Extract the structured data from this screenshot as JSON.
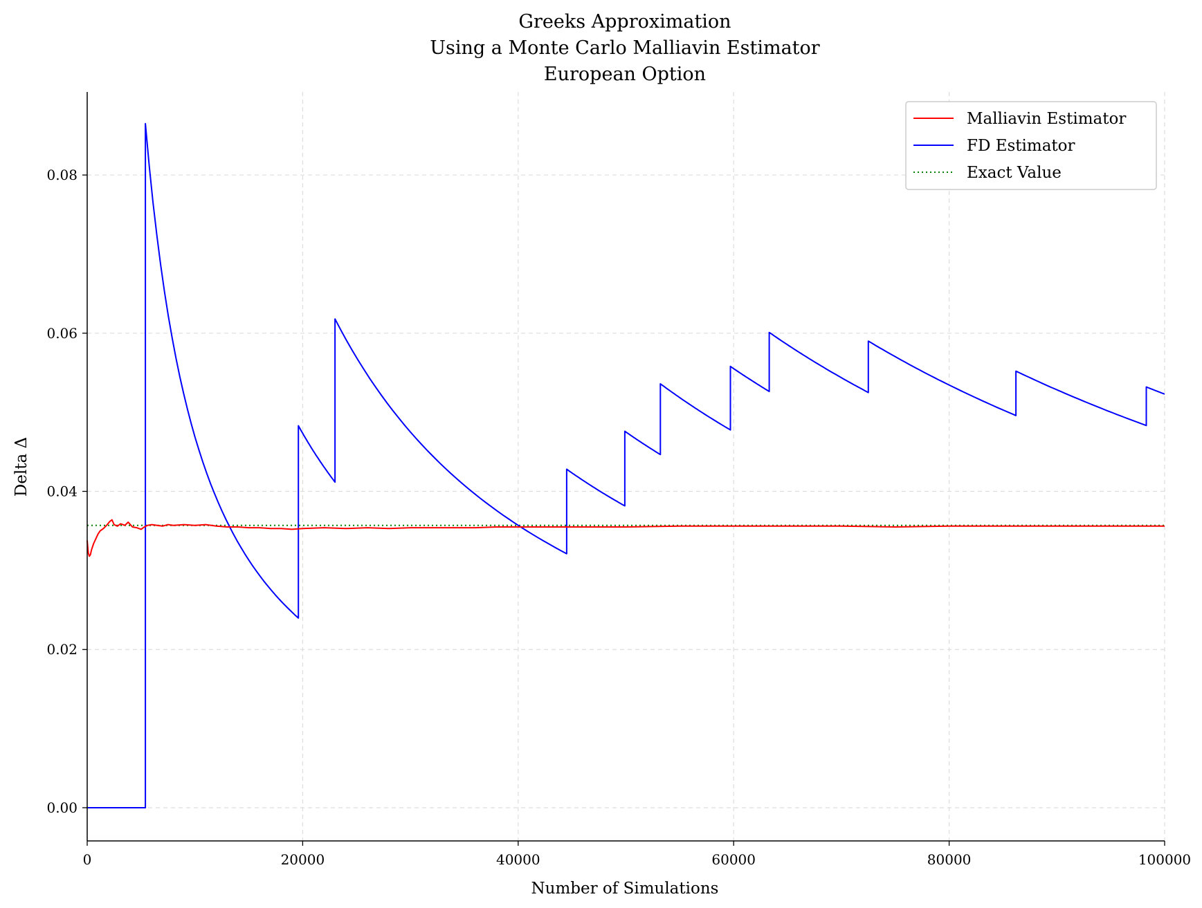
{
  "chart_data": {
    "type": "line",
    "title": [
      "Greeks Approximation",
      "Using a Monte Carlo Malliavin Estimator",
      "European Option"
    ],
    "xlabel": "Number of Simulations",
    "ylabel": "Delta Δ",
    "xlim": [
      0,
      100000
    ],
    "ylim": [
      -0.0042,
      0.0905
    ],
    "xticks": [
      0,
      20000,
      40000,
      60000,
      80000,
      100000
    ],
    "xtick_labels": [
      "0",
      "20000",
      "40000",
      "60000",
      "80000",
      "100000"
    ],
    "yticks": [
      0.0,
      0.02,
      0.04,
      0.06,
      0.08
    ],
    "ytick_labels": [
      "0.00",
      "0.02",
      "0.04",
      "0.06",
      "0.08"
    ],
    "grid": true,
    "grid_style": "dashed",
    "legend_position": "top-right",
    "series": [
      {
        "name": "Malliavin Estimator",
        "color": "#ff0000",
        "style": "solid",
        "x": [
          0,
          100,
          200,
          300,
          400,
          600,
          800,
          1000,
          1200,
          1500,
          1800,
          2100,
          2300,
          2500,
          2800,
          3100,
          3500,
          3800,
          4200,
          4600,
          5000,
          5300,
          5600,
          6000,
          6500,
          7000,
          7500,
          8000,
          9000,
          10000,
          11000,
          12000,
          13000,
          14000,
          15000,
          16000,
          17000,
          18000,
          19000,
          20000,
          22000,
          24000,
          26000,
          28000,
          30000,
          32000,
          34000,
          36000,
          38000,
          40000,
          45000,
          50000,
          55000,
          60000,
          65000,
          70000,
          75000,
          80000,
          85000,
          90000,
          95000,
          100000
        ],
        "y": [
          0.0338,
          0.0322,
          0.0318,
          0.032,
          0.0326,
          0.0334,
          0.034,
          0.0346,
          0.035,
          0.0353,
          0.0357,
          0.0362,
          0.0364,
          0.0358,
          0.0356,
          0.0359,
          0.0357,
          0.0361,
          0.0355,
          0.0354,
          0.0352,
          0.0355,
          0.0357,
          0.0358,
          0.0357,
          0.0356,
          0.0358,
          0.0357,
          0.0358,
          0.0357,
          0.0358,
          0.0356,
          0.0355,
          0.0355,
          0.0354,
          0.0354,
          0.0353,
          0.0353,
          0.0352,
          0.0353,
          0.0354,
          0.0353,
          0.0354,
          0.0353,
          0.0354,
          0.0354,
          0.0354,
          0.0354,
          0.0355,
          0.0355,
          0.0355,
          0.0355,
          0.0356,
          0.0356,
          0.0356,
          0.0356,
          0.0355,
          0.0356,
          0.0356,
          0.0356,
          0.0356,
          0.0356
        ]
      },
      {
        "name": "FD Estimator",
        "color": "#0000ff",
        "style": "solid",
        "segments": [
          {
            "start": 0,
            "end": 5400,
            "a": 0.0,
            "b": 0.0
          },
          {
            "start": 5400,
            "end": 19600,
            "a": 0.0865,
            "b": 0.0242
          },
          {
            "start": 19600,
            "end": 23000,
            "a": 0.0483,
            "b": 0.0413
          },
          {
            "start": 23000,
            "end": 44500,
            "a": 0.0618,
            "b": 0.032
          },
          {
            "start": 44500,
            "end": 49900,
            "a": 0.0428,
            "b": 0.0381
          },
          {
            "start": 49900,
            "end": 53200,
            "a": 0.0476,
            "b": 0.0447
          },
          {
            "start": 53200,
            "end": 59700,
            "a": 0.0536,
            "b": 0.0479
          },
          {
            "start": 59700,
            "end": 63300,
            "a": 0.0558,
            "b": 0.0527
          },
          {
            "start": 63300,
            "end": 72500,
            "a": 0.0601,
            "b": 0.0525
          },
          {
            "start": 72500,
            "end": 86200,
            "a": 0.059,
            "b": 0.0496
          },
          {
            "start": 86200,
            "end": 98300,
            "a": 0.0552,
            "b": 0.0484
          },
          {
            "start": 98300,
            "end": 100000,
            "a": 0.0532,
            "b": 0.0523
          }
        ]
      },
      {
        "name": "Exact Value",
        "color": "#008000",
        "style": "dotted",
        "x": [
          0,
          100000
        ],
        "y": [
          0.0357,
          0.0357
        ]
      }
    ]
  }
}
